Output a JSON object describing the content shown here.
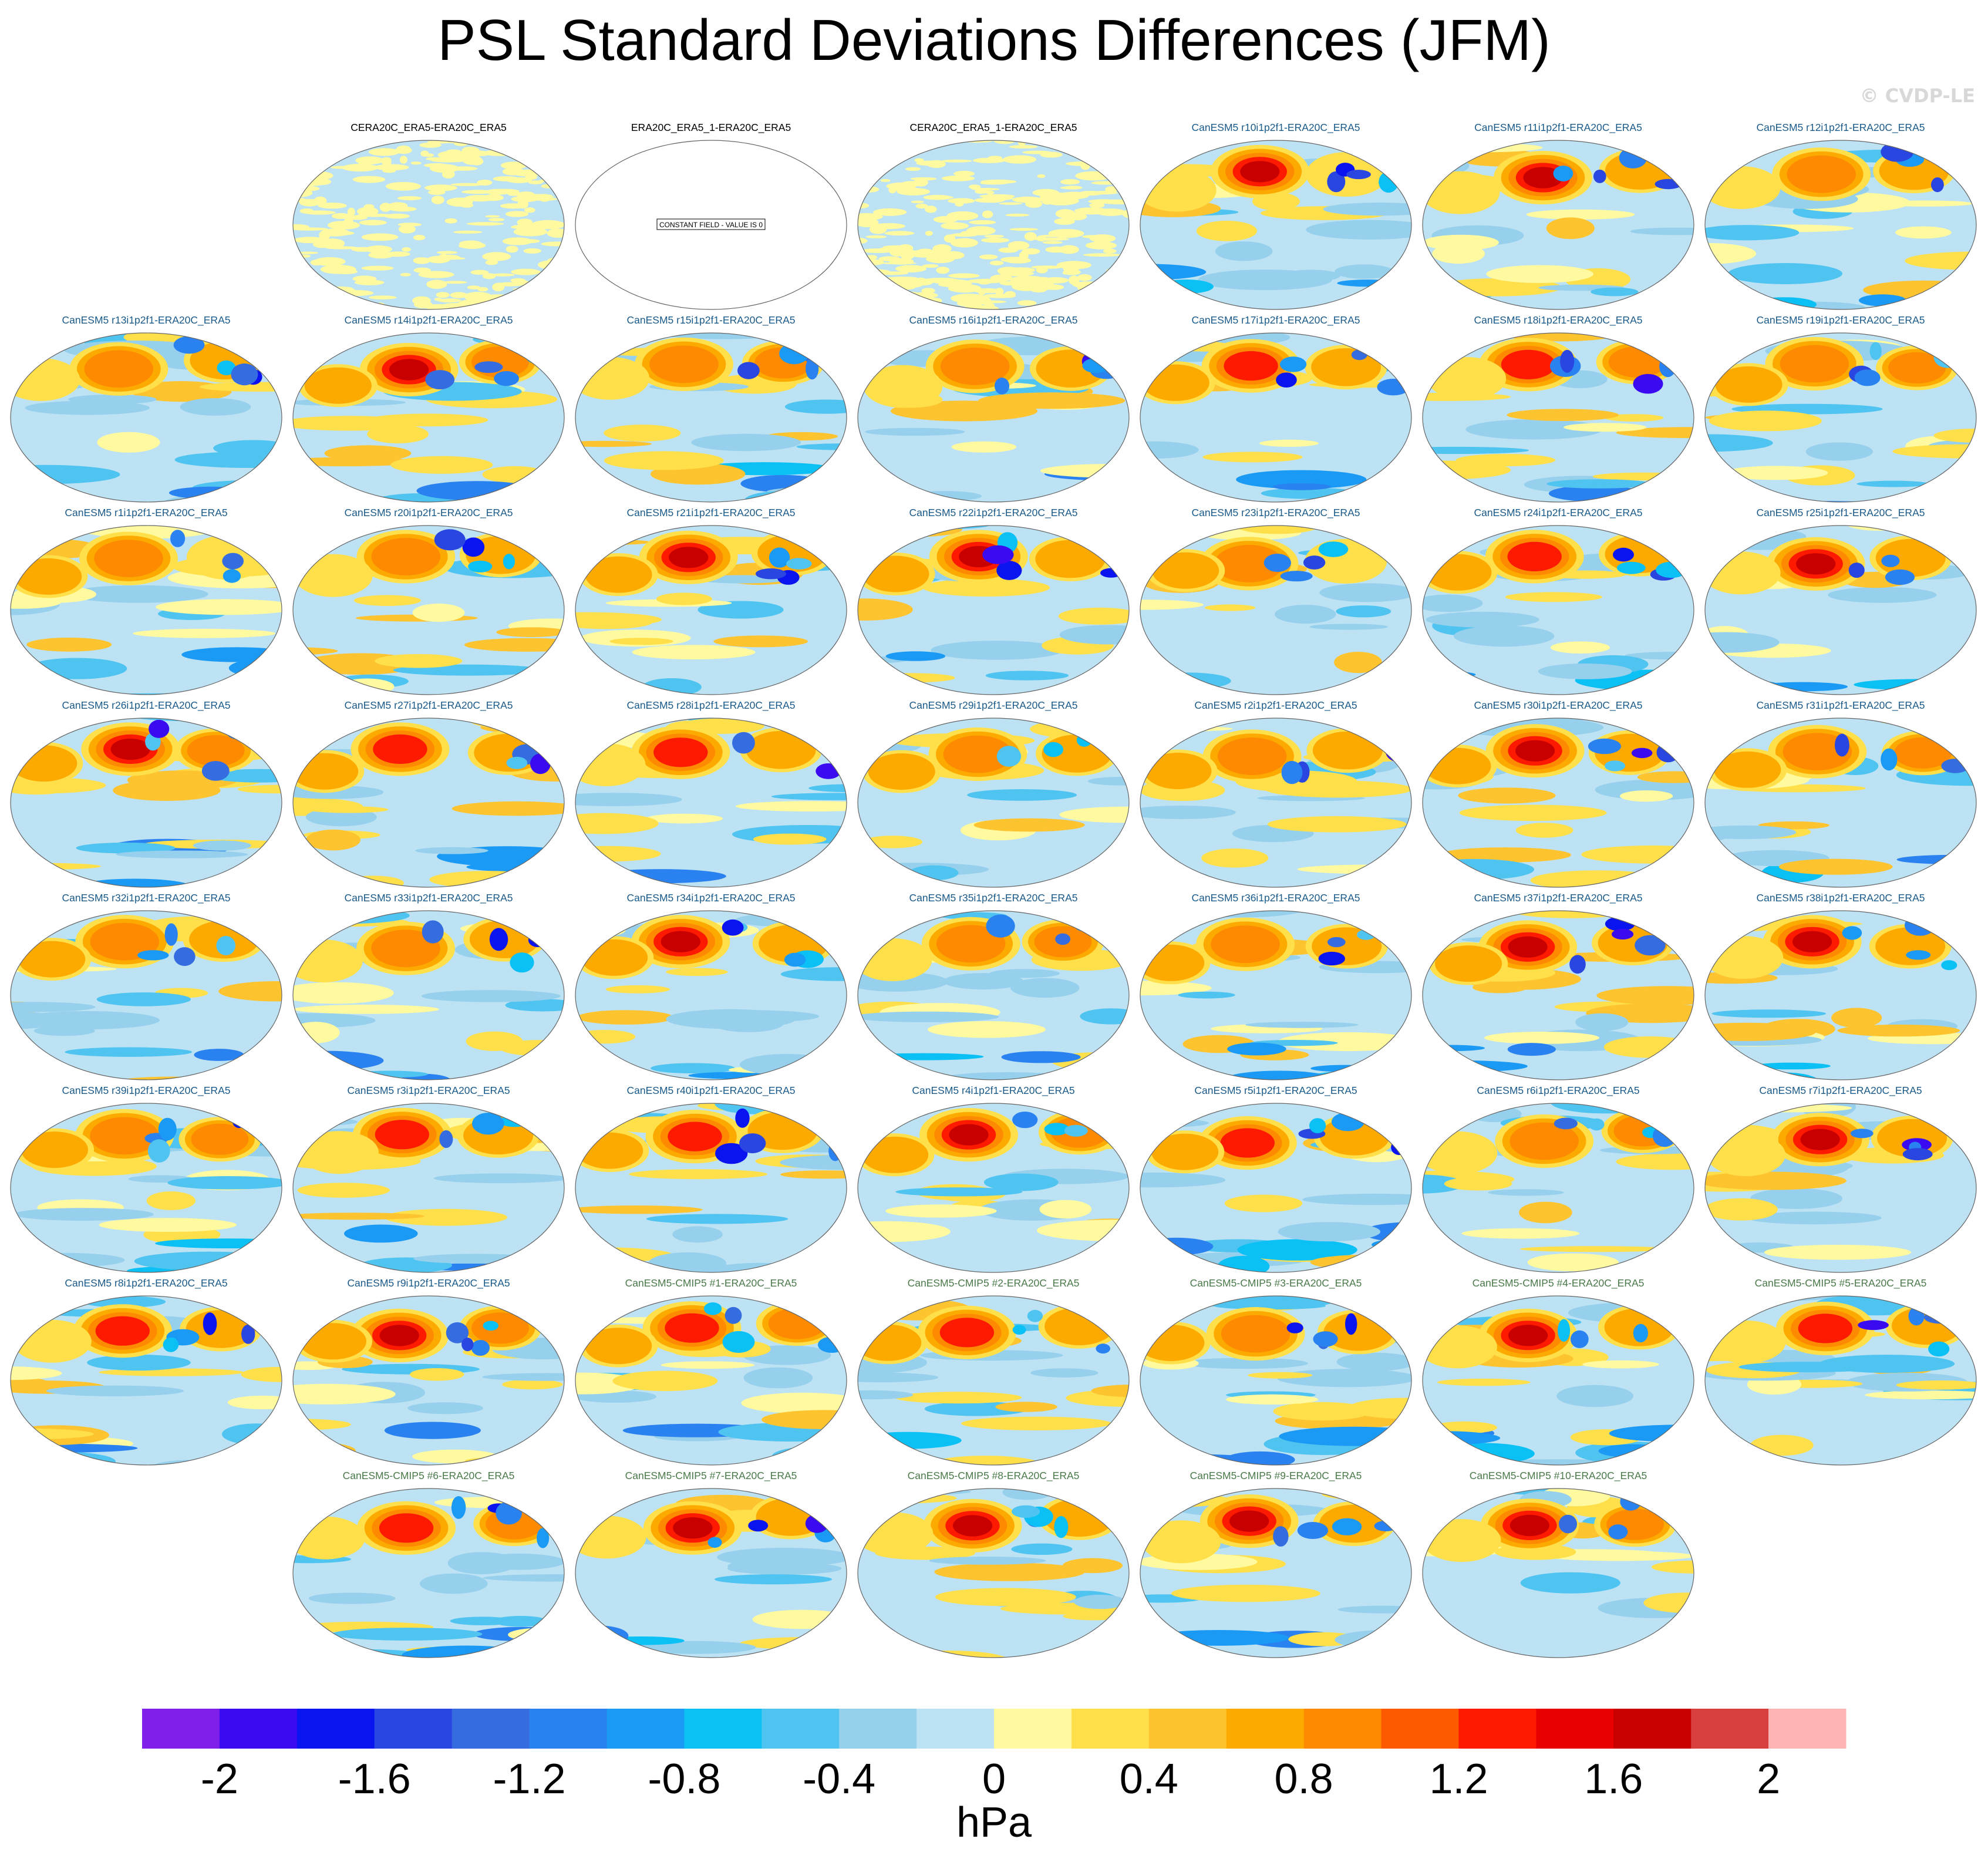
{
  "title": "PSL Standard Deviations Differences (JFM)",
  "watermark": "© CVDP-LE",
  "chart_data": {
    "type": "heatmap",
    "title": "PSL Standard Deviations Differences (JFM)",
    "units": "hPa",
    "colorbar": {
      "levels": [
        -2.2,
        -2,
        -1.8,
        -1.6,
        -1.4,
        -1.2,
        -1,
        -0.8,
        -0.6,
        -0.4,
        -0.2,
        0,
        0.2,
        0.4,
        0.6,
        0.8,
        1,
        1.2,
        1.4,
        1.6,
        1.8,
        2,
        2.2
      ],
      "tick_values": [
        -2,
        -1.6,
        -1.2,
        -0.8,
        -0.4,
        0,
        0.4,
        0.8,
        1.2,
        1.6,
        2
      ],
      "tick_labels": [
        "-2",
        "-1.6",
        "-1.2",
        "-0.8",
        "-0.4",
        "0",
        "0.4",
        "0.8",
        "1.2",
        "1.6",
        "2"
      ],
      "colors": [
        "#7f1fea",
        "#3a0af0",
        "#0a14f0",
        "#2a46e0",
        "#356ce0",
        "#2a82f0",
        "#1a9af5",
        "#0ac0f5",
        "#50c4f0",
        "#96d0ec",
        "#bce2f4",
        "#fffaa0",
        "#ffe04a",
        "#fdc430",
        "#fdaa00",
        "#fd8a00",
        "#fd5a00",
        "#fd1a00",
        "#e80000",
        "#c80000",
        "#d84040",
        "#ffb4b4"
      ],
      "label": "hPa"
    },
    "panels": [
      {
        "title": "CERA20C_ERA5-ERA20C_ERA5",
        "kind": "obs",
        "pattern": "speckle"
      },
      {
        "title": "ERA20C_ERA5_1-ERA20C_ERA5",
        "kind": "obs",
        "pattern": "constant",
        "note": "CONSTANT FIELD - VALUE IS 0"
      },
      {
        "title": "CERA20C_ERA5_1-ERA20C_ERA5",
        "kind": "obs",
        "pattern": "speckle"
      },
      {
        "title": "CanESM5 r10i1p2f1-ERA20C_ERA5",
        "kind": "model"
      },
      {
        "title": "CanESM5 r11i1p2f1-ERA20C_ERA5",
        "kind": "model"
      },
      {
        "title": "CanESM5 r12i1p2f1-ERA20C_ERA5",
        "kind": "model"
      },
      {
        "title": "CanESM5 r13i1p2f1-ERA20C_ERA5",
        "kind": "model"
      },
      {
        "title": "CanESM5 r14i1p2f1-ERA20C_ERA5",
        "kind": "model"
      },
      {
        "title": "CanESM5 r15i1p2f1-ERA20C_ERA5",
        "kind": "model"
      },
      {
        "title": "CanESM5 r16i1p2f1-ERA20C_ERA5",
        "kind": "model"
      },
      {
        "title": "CanESM5 r17i1p2f1-ERA20C_ERA5",
        "kind": "model"
      },
      {
        "title": "CanESM5 r18i1p2f1-ERA20C_ERA5",
        "kind": "model"
      },
      {
        "title": "CanESM5 r19i1p2f1-ERA20C_ERA5",
        "kind": "model"
      },
      {
        "title": "CanESM5 r1i1p2f1-ERA20C_ERA5",
        "kind": "model"
      },
      {
        "title": "CanESM5 r20i1p2f1-ERA20C_ERA5",
        "kind": "model"
      },
      {
        "title": "CanESM5 r21i1p2f1-ERA20C_ERA5",
        "kind": "model"
      },
      {
        "title": "CanESM5 r22i1p2f1-ERA20C_ERA5",
        "kind": "model"
      },
      {
        "title": "CanESM5 r23i1p2f1-ERA20C_ERA5",
        "kind": "model"
      },
      {
        "title": "CanESM5 r24i1p2f1-ERA20C_ERA5",
        "kind": "model"
      },
      {
        "title": "CanESM5 r25i1p2f1-ERA20C_ERA5",
        "kind": "model"
      },
      {
        "title": "CanESM5 r26i1p2f1-ERA20C_ERA5",
        "kind": "model"
      },
      {
        "title": "CanESM5 r27i1p2f1-ERA20C_ERA5",
        "kind": "model"
      },
      {
        "title": "CanESM5 r28i1p2f1-ERA20C_ERA5",
        "kind": "model"
      },
      {
        "title": "CanESM5 r29i1p2f1-ERA20C_ERA5",
        "kind": "model"
      },
      {
        "title": "CanESM5 r2i1p2f1-ERA20C_ERA5",
        "kind": "model"
      },
      {
        "title": "CanESM5 r30i1p2f1-ERA20C_ERA5",
        "kind": "model"
      },
      {
        "title": "CanESM5 r31i1p2f1-ERA20C_ERA5",
        "kind": "model"
      },
      {
        "title": "CanESM5 r32i1p2f1-ERA20C_ERA5",
        "kind": "model"
      },
      {
        "title": "CanESM5 r33i1p2f1-ERA20C_ERA5",
        "kind": "model"
      },
      {
        "title": "CanESM5 r34i1p2f1-ERA20C_ERA5",
        "kind": "model"
      },
      {
        "title": "CanESM5 r35i1p2f1-ERA20C_ERA5",
        "kind": "model"
      },
      {
        "title": "CanESM5 r36i1p2f1-ERA20C_ERA5",
        "kind": "model"
      },
      {
        "title": "CanESM5 r37i1p2f1-ERA20C_ERA5",
        "kind": "model"
      },
      {
        "title": "CanESM5 r38i1p2f1-ERA20C_ERA5",
        "kind": "model"
      },
      {
        "title": "CanESM5 r39i1p2f1-ERA20C_ERA5",
        "kind": "model"
      },
      {
        "title": "CanESM5 r3i1p2f1-ERA20C_ERA5",
        "kind": "model"
      },
      {
        "title": "CanESM5 r40i1p2f1-ERA20C_ERA5",
        "kind": "model"
      },
      {
        "title": "CanESM5 r4i1p2f1-ERA20C_ERA5",
        "kind": "model"
      },
      {
        "title": "CanESM5 r5i1p2f1-ERA20C_ERA5",
        "kind": "model"
      },
      {
        "title": "CanESM5 r6i1p2f1-ERA20C_ERA5",
        "kind": "model"
      },
      {
        "title": "CanESM5 r7i1p2f1-ERA20C_ERA5",
        "kind": "model"
      },
      {
        "title": "CanESM5 r8i1p2f1-ERA20C_ERA5",
        "kind": "model"
      },
      {
        "title": "CanESM5 r9i1p2f1-ERA20C_ERA5",
        "kind": "model"
      },
      {
        "title": "CanESM5-CMIP5 #1-ERA20C_ERA5",
        "kind": "cmip"
      },
      {
        "title": "CanESM5-CMIP5 #2-ERA20C_ERA5",
        "kind": "cmip"
      },
      {
        "title": "CanESM5-CMIP5 #3-ERA20C_ERA5",
        "kind": "cmip"
      },
      {
        "title": "CanESM5-CMIP5 #4-ERA20C_ERA5",
        "kind": "cmip"
      },
      {
        "title": "CanESM5-CMIP5 #5-ERA20C_ERA5",
        "kind": "cmip"
      },
      {
        "title": "CanESM5-CMIP5 #6-ERA20C_ERA5",
        "kind": "cmip"
      },
      {
        "title": "CanESM5-CMIP5 #7-ERA20C_ERA5",
        "kind": "cmip"
      },
      {
        "title": "CanESM5-CMIP5 #8-ERA20C_ERA5",
        "kind": "cmip"
      },
      {
        "title": "CanESM5-CMIP5 #9-ERA20C_ERA5",
        "kind": "cmip"
      },
      {
        "title": "CanESM5-CMIP5 #10-ERA20C_ERA5",
        "kind": "cmip"
      }
    ]
  }
}
